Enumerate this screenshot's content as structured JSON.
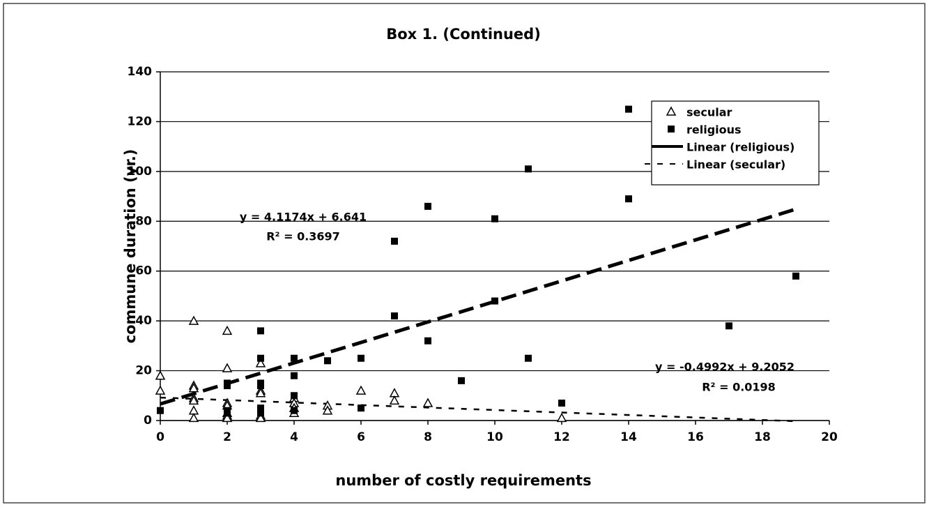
{
  "chart_data": {
    "type": "scatter",
    "title": "Box 1. (Continued)",
    "x_label": "number of costly requirements",
    "y_label": "commune duration (yr.)",
    "xlim": [
      0,
      20
    ],
    "xticks": [
      0,
      2,
      4,
      6,
      8,
      10,
      12,
      14,
      16,
      18,
      20
    ],
    "ylim": [
      0,
      140
    ],
    "yticks": [
      0,
      20,
      40,
      60,
      80,
      100,
      120,
      140
    ],
    "grid": true,
    "legend": "upper right",
    "series": [
      {
        "name": "secular",
        "color": "#000000",
        "marker": "triangle",
        "x": [
          0,
          0,
          1,
          1,
          1,
          1,
          1,
          1,
          1,
          2,
          2,
          2,
          2,
          2,
          2,
          2,
          3,
          3,
          3,
          3,
          3,
          4,
          4,
          4,
          4,
          5,
          5,
          6,
          7,
          7,
          8,
          12
        ],
        "values": [
          18,
          12,
          40,
          14,
          13,
          9,
          8,
          4,
          1,
          36,
          21,
          7,
          6,
          3,
          2,
          1,
          23,
          12,
          11,
          2,
          1,
          9,
          7,
          5,
          3,
          6,
          4,
          12,
          11,
          8,
          7,
          1
        ]
      },
      {
        "name": "religious",
        "color": "#000000",
        "marker": "square",
        "x": [
          0,
          2,
          2,
          2,
          2,
          3,
          3,
          3,
          3,
          3,
          3,
          4,
          4,
          4,
          4,
          5,
          6,
          6,
          7,
          7,
          8,
          8,
          9,
          10,
          10,
          11,
          11,
          12,
          14,
          14,
          17,
          19
        ],
        "values": [
          4,
          15,
          14,
          4,
          3,
          36,
          25,
          15,
          14,
          5,
          3,
          25,
          18,
          10,
          4,
          24,
          25,
          5,
          72,
          42,
          86,
          32,
          16,
          81,
          48,
          101,
          25,
          7,
          125,
          89,
          38,
          58
        ]
      }
    ],
    "trendlines": [
      {
        "name": "Linear (religious)",
        "slope": 4.1174,
        "intercept": 6.641,
        "x": [
          0,
          19
        ],
        "color": "#000000",
        "style": "long-dash"
      },
      {
        "name": "Linear (secular)",
        "slope": -0.4992,
        "intercept": 9.2052,
        "x": [
          0,
          19
        ],
        "color": "#000000",
        "style": "short-dash"
      }
    ],
    "annotations": [
      {
        "text": "y = 4.1174x + 6.641"
      },
      {
        "text": "R² = 0.3697"
      },
      {
        "text": "y = -0.4992x + 9.2052"
      },
      {
        "text": "R² = 0.0198"
      }
    ]
  }
}
